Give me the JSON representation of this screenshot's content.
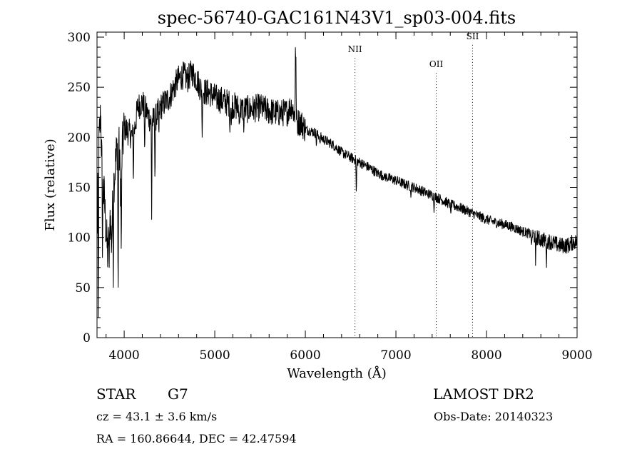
{
  "chart_data": {
    "type": "line",
    "title": "spec-56740-GAC161N43V1_sp03-004.fits",
    "xlabel": "Wavelength (Å)",
    "ylabel": "Flux (relative)",
    "xlim": [
      3700,
      9000
    ],
    "ylim": [
      0,
      305
    ],
    "xticks": [
      4000,
      5000,
      6000,
      7000,
      8000,
      9000
    ],
    "yticks": [
      0,
      50,
      100,
      150,
      200,
      250,
      300
    ],
    "grid": false,
    "series": [
      {
        "anchors": [
          [
            3700,
            100
          ],
          [
            3720,
            190
          ],
          [
            3740,
            225
          ],
          [
            3760,
            150
          ],
          [
            3780,
            140
          ],
          [
            3800,
            105
          ],
          [
            3820,
            80
          ],
          [
            3840,
            130
          ],
          [
            3860,
            95
          ],
          [
            3880,
            150
          ],
          [
            3900,
            170
          ],
          [
            3920,
            190
          ],
          [
            3940,
            195
          ],
          [
            3960,
            150
          ],
          [
            3980,
            190
          ],
          [
            4000,
            210
          ],
          [
            4050,
            205
          ],
          [
            4100,
            200
          ],
          [
            4150,
            230
          ],
          [
            4200,
            235
          ],
          [
            4250,
            225
          ],
          [
            4300,
            215
          ],
          [
            4350,
            220
          ],
          [
            4400,
            230
          ],
          [
            4450,
            235
          ],
          [
            4500,
            240
          ],
          [
            4550,
            250
          ],
          [
            4600,
            258
          ],
          [
            4650,
            262
          ],
          [
            4700,
            258
          ],
          [
            4750,
            265
          ],
          [
            4800,
            258
          ],
          [
            4850,
            248
          ],
          [
            4900,
            245
          ],
          [
            4950,
            244
          ],
          [
            5000,
            240
          ],
          [
            5100,
            236
          ],
          [
            5200,
            232
          ],
          [
            5300,
            228
          ],
          [
            5400,
            228
          ],
          [
            5500,
            230
          ],
          [
            5600,
            226
          ],
          [
            5700,
            224
          ],
          [
            5800,
            225
          ],
          [
            5850,
            232
          ],
          [
            5900,
            215
          ],
          [
            5950,
            215
          ],
          [
            6000,
            208
          ],
          [
            6100,
            205
          ],
          [
            6200,
            198
          ],
          [
            6300,
            193
          ],
          [
            6400,
            185
          ],
          [
            6500,
            180
          ],
          [
            6600,
            175
          ],
          [
            6700,
            170
          ],
          [
            6800,
            164
          ],
          [
            6900,
            160
          ],
          [
            7000,
            157
          ],
          [
            7100,
            153
          ],
          [
            7200,
            150
          ],
          [
            7300,
            146
          ],
          [
            7400,
            142
          ],
          [
            7500,
            138
          ],
          [
            7600,
            133
          ],
          [
            7700,
            130
          ],
          [
            7800,
            126
          ],
          [
            7900,
            122
          ],
          [
            8000,
            118
          ],
          [
            8100,
            115
          ],
          [
            8200,
            113
          ],
          [
            8300,
            110
          ],
          [
            8400,
            106
          ],
          [
            8500,
            103
          ],
          [
            8600,
            98
          ],
          [
            8700,
            96
          ],
          [
            8800,
            92
          ],
          [
            8900,
            92
          ],
          [
            8950,
            95
          ],
          [
            9000,
            96
          ]
        ],
        "features": [
          [
            3715,
            20
          ],
          [
            3760,
            80
          ],
          [
            3835,
            70
          ],
          [
            3880,
            50
          ],
          [
            3933,
            20
          ],
          [
            3968,
            75
          ],
          [
            4101,
            150
          ],
          [
            4226,
            180
          ],
          [
            4303,
            118
          ],
          [
            4340,
            150
          ],
          [
            4383,
            200
          ],
          [
            4861,
            200
          ],
          [
            5167,
            205
          ],
          [
            5183,
            208
          ],
          [
            5270,
            210
          ],
          [
            5320,
            205
          ],
          [
            5891,
            305
          ],
          [
            5896,
            280
          ],
          [
            6122,
            190
          ],
          [
            6162,
            192
          ],
          [
            6563,
            140
          ],
          [
            6867,
            160
          ],
          [
            7165,
            140
          ],
          [
            7420,
            125
          ],
          [
            7605,
            122
          ],
          [
            8498,
            90
          ],
          [
            8542,
            72
          ],
          [
            8662,
            70
          ]
        ]
      }
    ],
    "emission_lines": [
      {
        "label": "NII",
        "x": 6548,
        "label_y": 285
      },
      {
        "label": "OII",
        "x": 7445,
        "label_y": 270
      },
      {
        "label": "SII",
        "x": 7846,
        "label_y": 298
      }
    ]
  },
  "info": {
    "object_class": "STAR",
    "subclass": "G7",
    "survey": "LAMOST DR2",
    "cz": "cz = 43.1 ± 3.6 km/s",
    "obs_date": "Obs-Date: 20140323",
    "coords": "RA = 160.86644, DEC =  42.47594"
  }
}
